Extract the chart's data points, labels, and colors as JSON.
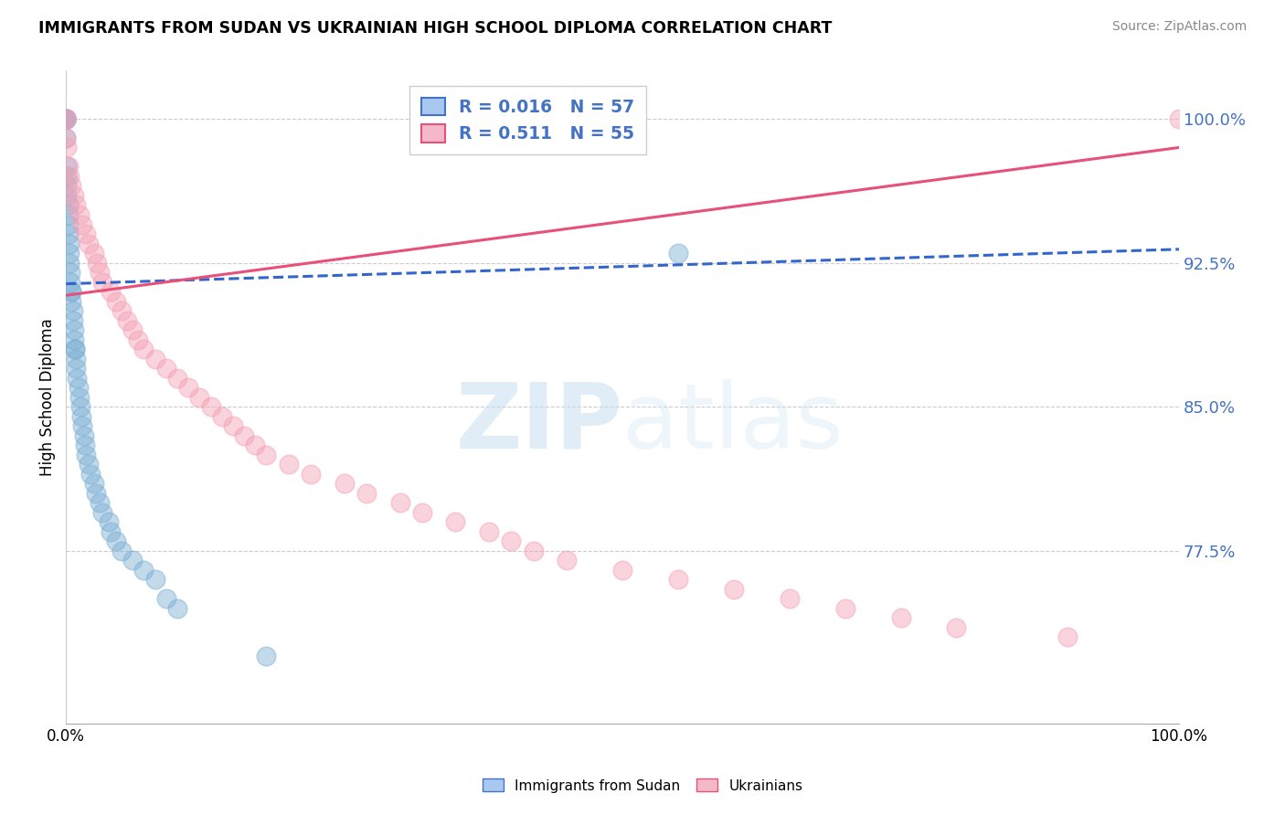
{
  "title": "IMMIGRANTS FROM SUDAN VS UKRAINIAN HIGH SCHOOL DIPLOMA CORRELATION CHART",
  "source": "Source: ZipAtlas.com",
  "ylabel": "High School Diploma",
  "legend_entry1": "R = 0.016   N = 57",
  "legend_entry2": "R = 0.511   N = 55",
  "legend_label1": "Immigrants from Sudan",
  "legend_label2": "Ukrainians",
  "sudan_color": "#7bafd4",
  "ukraine_color": "#f4a0b5",
  "sudan_trend_color": "#3366cc",
  "ukraine_trend_color": "#e8507a",
  "xlim": [
    0.0,
    1.0
  ],
  "ylim": [
    0.685,
    1.025
  ],
  "sudan_x": [
    0.0,
    0.0,
    0.0,
    0.0,
    0.0,
    0.0,
    0.0,
    0.001,
    0.001,
    0.001,
    0.001,
    0.002,
    0.002,
    0.002,
    0.002,
    0.003,
    0.003,
    0.003,
    0.004,
    0.004,
    0.005,
    0.005,
    0.005,
    0.006,
    0.006,
    0.007,
    0.007,
    0.008,
    0.008,
    0.009,
    0.009,
    0.01,
    0.011,
    0.012,
    0.013,
    0.014,
    0.015,
    0.016,
    0.017,
    0.018,
    0.02,
    0.022,
    0.025,
    0.027,
    0.03,
    0.033,
    0.038,
    0.04,
    0.045,
    0.05,
    0.06,
    0.07,
    0.08,
    0.09,
    0.1,
    0.18,
    0.55
  ],
  "sudan_y": [
    1.0,
    1.0,
    1.0,
    1.0,
    1.0,
    1.0,
    0.99,
    0.975,
    0.97,
    0.965,
    0.96,
    0.955,
    0.95,
    0.945,
    0.94,
    0.935,
    0.93,
    0.925,
    0.92,
    0.915,
    0.91,
    0.91,
    0.905,
    0.9,
    0.895,
    0.89,
    0.885,
    0.88,
    0.88,
    0.875,
    0.87,
    0.865,
    0.86,
    0.855,
    0.85,
    0.845,
    0.84,
    0.835,
    0.83,
    0.825,
    0.82,
    0.815,
    0.81,
    0.805,
    0.8,
    0.795,
    0.79,
    0.785,
    0.78,
    0.775,
    0.77,
    0.765,
    0.76,
    0.75,
    0.745,
    0.72,
    0.93
  ],
  "ukraine_x": [
    0.0,
    0.0,
    0.0,
    0.001,
    0.002,
    0.003,
    0.005,
    0.007,
    0.009,
    0.012,
    0.015,
    0.018,
    0.02,
    0.025,
    0.028,
    0.03,
    0.033,
    0.04,
    0.045,
    0.05,
    0.055,
    0.06,
    0.065,
    0.07,
    0.08,
    0.09,
    0.1,
    0.11,
    0.12,
    0.13,
    0.14,
    0.15,
    0.16,
    0.17,
    0.18,
    0.2,
    0.22,
    0.25,
    0.27,
    0.3,
    0.32,
    0.35,
    0.38,
    0.4,
    0.42,
    0.45,
    0.5,
    0.55,
    0.6,
    0.65,
    0.7,
    0.75,
    0.8,
    0.9,
    1.0
  ],
  "ukraine_y": [
    1.0,
    1.0,
    0.99,
    0.985,
    0.975,
    0.97,
    0.965,
    0.96,
    0.955,
    0.95,
    0.945,
    0.94,
    0.935,
    0.93,
    0.925,
    0.92,
    0.915,
    0.91,
    0.905,
    0.9,
    0.895,
    0.89,
    0.885,
    0.88,
    0.875,
    0.87,
    0.865,
    0.86,
    0.855,
    0.85,
    0.845,
    0.84,
    0.835,
    0.83,
    0.825,
    0.82,
    0.815,
    0.81,
    0.805,
    0.8,
    0.795,
    0.79,
    0.785,
    0.78,
    0.775,
    0.77,
    0.765,
    0.76,
    0.755,
    0.75,
    0.745,
    0.74,
    0.735,
    0.73,
    1.0
  ],
  "sudan_trend_x": [
    0.0,
    1.0
  ],
  "sudan_trend_y": [
    0.914,
    0.932
  ],
  "ukraine_trend_x": [
    0.0,
    1.0
  ],
  "ukraine_trend_y": [
    0.908,
    0.985
  ],
  "y_tick_vals": [
    0.775,
    0.85,
    0.925,
    1.0
  ],
  "y_tick_labels": [
    "77.5%",
    "85.0%",
    "92.5%",
    "100.0%"
  ]
}
